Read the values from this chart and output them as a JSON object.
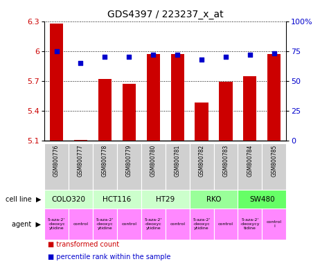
{
  "title": "GDS4397 / 223237_x_at",
  "samples": [
    "GSM800776",
    "GSM800777",
    "GSM800778",
    "GSM800779",
    "GSM800780",
    "GSM800781",
    "GSM800782",
    "GSM800783",
    "GSM800784",
    "GSM800785"
  ],
  "bar_values": [
    6.28,
    5.105,
    5.72,
    5.67,
    5.97,
    5.97,
    5.48,
    5.69,
    5.75,
    5.97
  ],
  "scatter_values": [
    75,
    65,
    70,
    70,
    72,
    72,
    68,
    70,
    72,
    73
  ],
  "ylim_left": [
    5.1,
    6.3
  ],
  "ylim_right": [
    0,
    100
  ],
  "yticks_left": [
    5.1,
    5.4,
    5.7,
    6.0,
    6.3
  ],
  "ytick_labels_left": [
    "5.1",
    "5.4",
    "5.7",
    "6",
    "6.3"
  ],
  "yticks_right": [
    0,
    25,
    50,
    75,
    100
  ],
  "ytick_labels_right": [
    "0",
    "25",
    "50",
    "75",
    "100%"
  ],
  "bar_color": "#cc0000",
  "scatter_color": "#0000cc",
  "bg_color": "#ffffff",
  "bar_bottom": 5.1,
  "cell_line_data": [
    {
      "name": "COLO320",
      "start": 0,
      "end": 2,
      "color": "#ccffcc"
    },
    {
      "name": "HCT116",
      "start": 2,
      "end": 4,
      "color": "#ccffcc"
    },
    {
      "name": "HT29",
      "start": 4,
      "end": 6,
      "color": "#ccffcc"
    },
    {
      "name": "RKO",
      "start": 6,
      "end": 8,
      "color": "#99ff99"
    },
    {
      "name": "SW480",
      "start": 8,
      "end": 10,
      "color": "#66ff66"
    }
  ],
  "agent_data": [
    {
      "name": "5-aza-2'\n-deoxyc\nytidine",
      "start": 0,
      "end": 1,
      "color": "#ff88ff"
    },
    {
      "name": "control",
      "start": 1,
      "end": 2,
      "color": "#ff88ff"
    },
    {
      "name": "5-aza-2'\n-deoxyc\nytidine",
      "start": 2,
      "end": 3,
      "color": "#ff88ff"
    },
    {
      "name": "control",
      "start": 3,
      "end": 4,
      "color": "#ff88ff"
    },
    {
      "name": "5-aza-2'\n-deoxyc\nytidine",
      "start": 4,
      "end": 5,
      "color": "#ff88ff"
    },
    {
      "name": "control",
      "start": 5,
      "end": 6,
      "color": "#ff88ff"
    },
    {
      "name": "5-aza-2'\n-deoxyc\nytidine",
      "start": 6,
      "end": 7,
      "color": "#ff88ff"
    },
    {
      "name": "control",
      "start": 7,
      "end": 8,
      "color": "#ff88ff"
    },
    {
      "name": "5-aza-2'\n-deoxycy\ntidine",
      "start": 8,
      "end": 9,
      "color": "#ff88ff"
    },
    {
      "name": "control\nl",
      "start": 9,
      "end": 10,
      "color": "#ff88ff"
    }
  ],
  "legend_bar_label": "transformed count",
  "legend_scatter_label": "percentile rank within the sample",
  "grid_linestyle": ":",
  "grid_color": "black",
  "grid_linewidth": 0.7,
  "sample_box_color": "#d0d0d0",
  "sample_box_edge": "white"
}
